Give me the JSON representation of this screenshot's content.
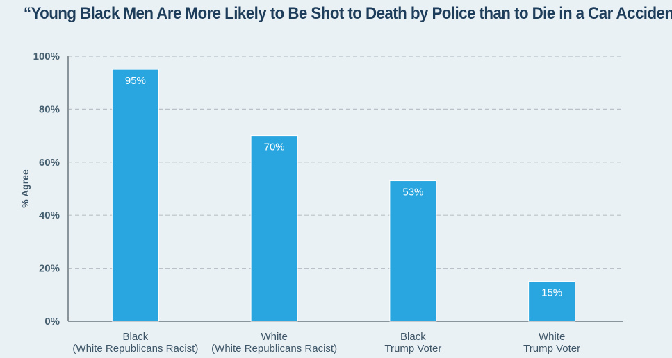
{
  "chart_data": {
    "type": "bar",
    "title": "“Young Black Men Are More Likely to Be Shot to Death by Police than to Die in a Car Accident”",
    "ylabel": "% Agree",
    "xlabel": "",
    "categories": [
      [
        "Black",
        "(White Republicans Racist)"
      ],
      [
        "White",
        "(White Republicans Racist)"
      ],
      [
        "Black",
        "Trump Voter"
      ],
      [
        "White",
        "Trump Voter"
      ]
    ],
    "values": [
      95,
      70,
      53,
      15
    ],
    "data_labels": [
      "95%",
      "70%",
      "53%",
      "15%"
    ],
    "ylim": [
      0,
      100
    ],
    "yticks": [
      0,
      20,
      40,
      60,
      80,
      100
    ],
    "ytick_labels": [
      "0%",
      "20%",
      "40%",
      "60%",
      "80%",
      "100%"
    ],
    "grid": true,
    "colors": {
      "bar": "#29a6df",
      "background": "#eaf1f5",
      "title": "#1e3d5a"
    }
  }
}
